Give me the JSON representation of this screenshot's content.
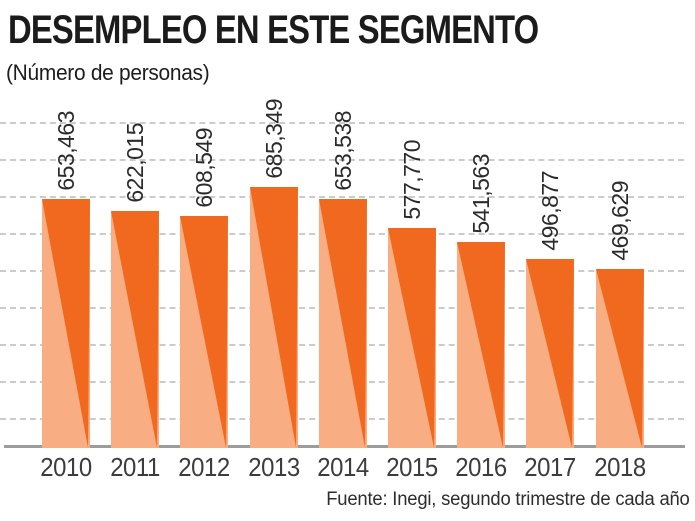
{
  "header": {
    "title": "DESEMPLEO EN ESTE SEGMENTO",
    "subtitle": "(Número de personas)"
  },
  "footer": {
    "source": "Fuente: Inegi, segundo trimestre de cada año"
  },
  "colors": {
    "bar_dark_orange": "#f0691e",
    "bar_light_orange": "#f8ad82",
    "gridline_gray": "#cbcbcb",
    "axis_gray": "#9c9c9c",
    "text_dark": "#1b1b1b"
  },
  "chart_data": {
    "type": "bar",
    "title": "DESEMPLEO EN ESTE SEGMENTO",
    "subtitle": "(Número de personas)",
    "source": "Fuente: Inegi, segundo trimestre de cada año",
    "categories": [
      "2010",
      "2011",
      "2012",
      "2013",
      "2014",
      "2015",
      "2016",
      "2017",
      "2018"
    ],
    "values": [
      653463,
      622015,
      608549,
      685349,
      653538,
      577770,
      541563,
      496877,
      469629
    ],
    "value_labels": [
      "653,463",
      "622,015",
      "608,549",
      "685,349",
      "653,538",
      "577,770",
      "541,563",
      "496,877",
      "469,629"
    ],
    "xlabel": "",
    "ylabel": "",
    "ylim": [
      0,
      740000
    ],
    "grid": "horizontal-dashed",
    "gridline_count": 9,
    "legend": "none",
    "bar_style": "two-tone diagonal: dark orange triangle over light orange base"
  }
}
